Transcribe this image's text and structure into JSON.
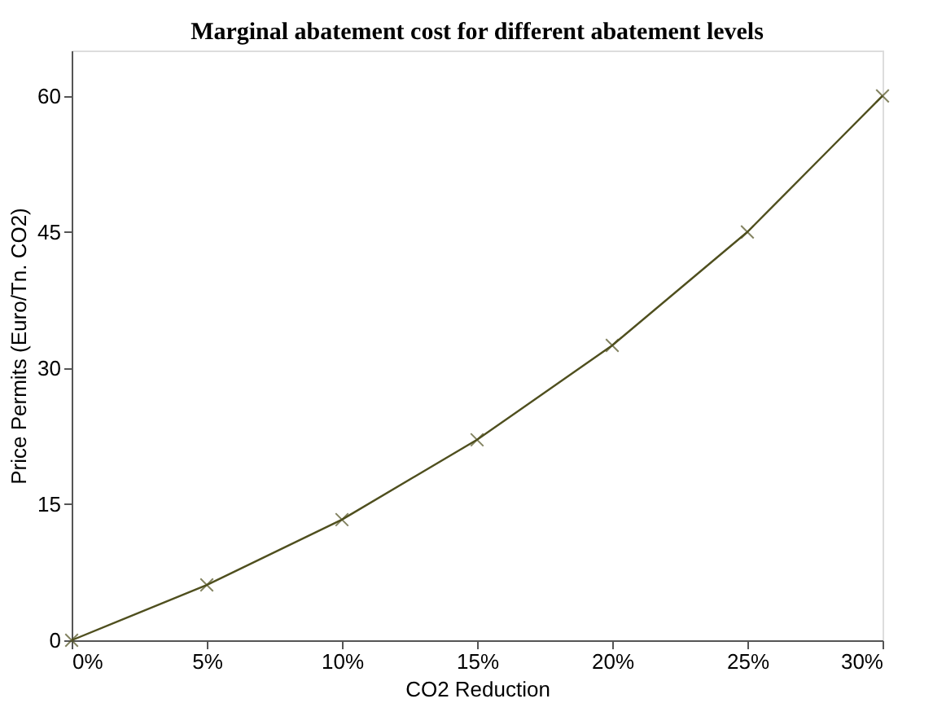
{
  "chart_data": {
    "type": "line",
    "title": "Marginal abatement cost for different abatement levels",
    "xlabel": "CO2 Reduction",
    "ylabel": "Price Permits (Euro/Tn. CO2)",
    "x": [
      0,
      5,
      10,
      15,
      20,
      25,
      30
    ],
    "series": [
      {
        "color": "#4f4f1e",
        "values": [
          0,
          6.1,
          13.3,
          22.1,
          32.5,
          45,
          60
        ]
      }
    ],
    "xlim": [
      0,
      30
    ],
    "xticks": [
      {
        "value": 0,
        "label": "0%"
      },
      {
        "value": 5,
        "label": "5%"
      },
      {
        "value": 10,
        "label": "10%"
      },
      {
        "value": 15,
        "label": "15%"
      },
      {
        "value": 20,
        "label": "20%"
      },
      {
        "value": 25,
        "label": "25%"
      },
      {
        "value": 30,
        "label": "30%"
      }
    ],
    "ylim": [
      0,
      65
    ],
    "yticks": [
      0,
      15,
      30,
      45,
      60
    ],
    "grid": false,
    "marker": "cross",
    "line_style": "solid"
  }
}
